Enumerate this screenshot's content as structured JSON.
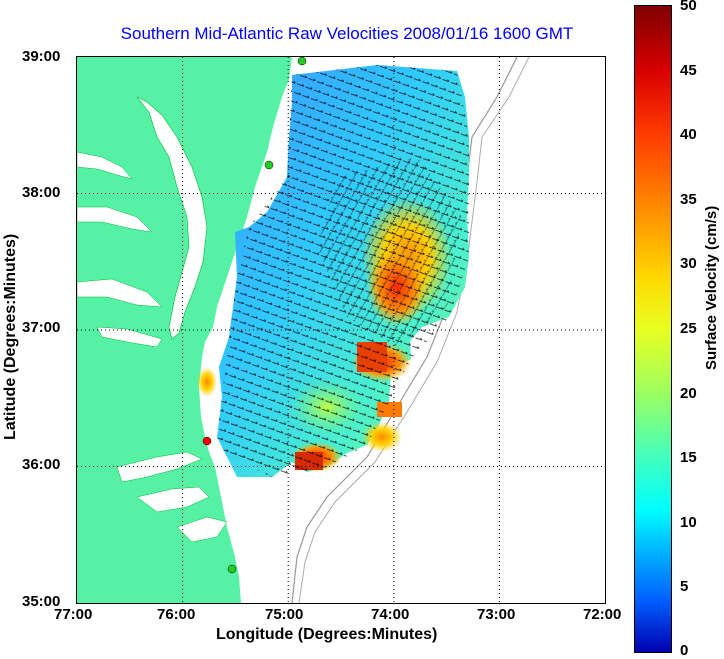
{
  "title": "Southern Mid-Atlantic Raw Velocities 2008/01/16 1600 GMT",
  "xlabel": "Longitude (Degrees:Minutes)",
  "ylabel": "Latitude (Degrees:Minutes)",
  "x_ticks": [
    "77:00",
    "76:00",
    "75:00",
    "74:00",
    "73:00",
    "72:00"
  ],
  "y_ticks": [
    "39:00",
    "38:00",
    "37:00",
    "36:00",
    "35:00"
  ],
  "colorbar": {
    "label": "Surface Velocity (cm/s)",
    "ticks": [
      "50",
      "45",
      "40",
      "35",
      "30",
      "25",
      "20",
      "15",
      "10",
      "5",
      "0"
    ]
  },
  "colors": {
    "land": "#55f2a6",
    "water": "#ffffff",
    "title": "#0000ff",
    "station_green": "#22cc22",
    "station_red": "#ff0000"
  }
}
